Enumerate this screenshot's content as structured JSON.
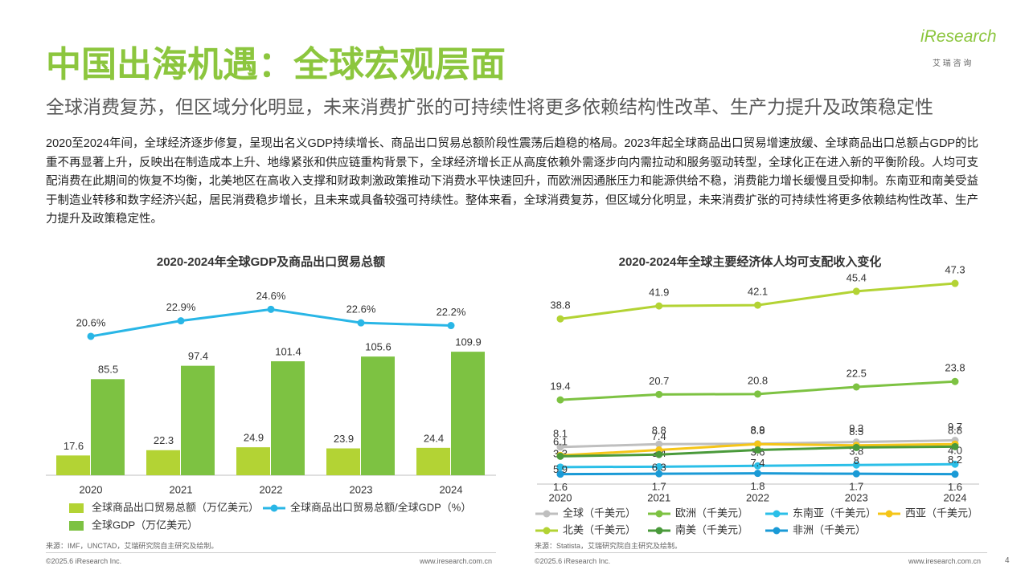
{
  "header": {
    "title": "中国出海机遇：全球宏观层面",
    "subtitle": "全球消费复苏，但区域分化明显，未来消费扩张的可持续性将更多依赖结构性改革、生产力提升及政策稳定性",
    "logo": "iResearch",
    "logo_sub": "艾 瑞 咨 询"
  },
  "body": {
    "paragraph": "2020至2024年间，全球经济逐步修复，呈现出名义GDP持续增长、商品出口贸易总额阶段性震荡后趋稳的格局。2023年起全球商品出口贸易增速放缓、全球商品出口总额占GDP的比重不再显著上升，反映出在制造成本上升、地缘紧张和供应链重构背景下，全球经济增长正从高度依赖外需逐步向内需拉动和服务驱动转型，全球化正在进入新的平衡阶段。人均可支配消费在此期间的恢复不均衡，北美地区在高收入支撑和财政刺激政策推动下消费水平快速回升，而欧洲因通胀压力和能源供给不稳，消费能力增长缓慢且受抑制。东南亚和南美受益于制造业转移和数字经济兴起，居民消费稳步增长，且未来或具备较强可持续性。整体来看，全球消费复苏，但区域分化明显，未来消费扩张的可持续性将更多依赖结构性改革、生产力提升及政策稳定性。"
  },
  "chart_data": [
    {
      "type": "bar",
      "title": "2020-2024年全球GDP及商品出口贸易总额",
      "note": "来源：IMF，UNCTAD，艾瑞研究院自主研究及绘制。",
      "categories": [
        "2020",
        "2021",
        "2022",
        "2023",
        "2024"
      ],
      "ylim": [
        0,
        180
      ],
      "y2lim": [
        0,
        30
      ],
      "series": [
        {
          "name": "全球商品出口贸易总额（万亿美元）",
          "type": "bar",
          "color": "#b3d334",
          "values": [
            17.6,
            22.3,
            24.9,
            23.9,
            24.4
          ]
        },
        {
          "name": "全球GDP（万亿美元）",
          "type": "bar",
          "color": "#7dc242",
          "values": [
            85.5,
            97.4,
            101.4,
            105.6,
            109.9
          ]
        },
        {
          "name": "全球商品出口贸易总额/全球GDP（%）",
          "type": "line",
          "axis": "y2",
          "color": "#29b6e6",
          "values": [
            20.6,
            22.9,
            24.6,
            22.6,
            22.2
          ],
          "value_labels": [
            "20.6%",
            "22.9%",
            "24.6%",
            "22.6%",
            "22.2%"
          ]
        }
      ]
    },
    {
      "type": "line",
      "title": "2020-2024年全球主要经济体人均可支配收入变化",
      "note": "来源：Statista，艾瑞研究院自主研究及绘制。",
      "categories": [
        "2020",
        "2021",
        "2022",
        "2023",
        "2024"
      ],
      "ylim": [
        0,
        50
      ],
      "series": [
        {
          "name": "全球（千美元）",
          "color": "#bfbfbf",
          "values": [
            8.1,
            8.8,
            8.9,
            9.3,
            9.7
          ]
        },
        {
          "name": "欧洲（千美元）",
          "color": "#7dc242",
          "values": [
            19.4,
            20.7,
            20.8,
            22.5,
            23.8
          ]
        },
        {
          "name": "东南亚（千美元）",
          "color": "#2bbfe8",
          "values": [
            3.3,
            3.4,
            3.6,
            3.8,
            4.0
          ],
          "value_labels": [
            "3.3",
            "3.4",
            "3.6",
            "3.8",
            "4.0"
          ]
        },
        {
          "name": "西亚（千美元）",
          "color": "#f5c518",
          "values": [
            6.1,
            7.4,
            8.8,
            8.5,
            8.8
          ]
        },
        {
          "name": "北美（千美元）",
          "color": "#b3d334",
          "values": [
            38.8,
            41.9,
            42.1,
            45.4,
            47.3
          ]
        },
        {
          "name": "南美（千美元）",
          "color": "#4a9a3b",
          "values": [
            5.9,
            6.3,
            7.4,
            8.0,
            8.2
          ],
          "label_position": "below"
        },
        {
          "name": "非洲（千美元）",
          "color": "#1a9ad6",
          "values": [
            1.6,
            1.7,
            1.8,
            1.7,
            1.6
          ],
          "label_position": "below"
        }
      ]
    }
  ],
  "footer": {
    "copyright": "©2025.6 iResearch Inc.",
    "url": "www.iresearch.com.cn",
    "page": "4"
  }
}
